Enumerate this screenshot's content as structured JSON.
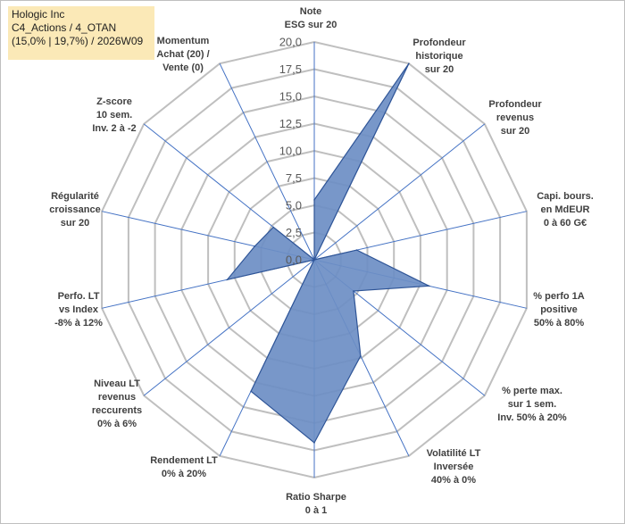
{
  "title_box": {
    "line1": "Hologic Inc",
    "line2": "C4_Actions / 4_OTAN",
    "line3": "(15,0% | 19,7%) / 2026W09"
  },
  "colors": {
    "fill": "#6d8ec4",
    "stroke": "#2f5597",
    "grid": "#bfbfbf",
    "spoke": "#4472c4",
    "title_bg": "#fbe9b7"
  },
  "chart_data": {
    "type": "radar",
    "rmax": 20,
    "ticks": [
      "0,0",
      "2,5",
      "5,0",
      "7,5",
      "10,0",
      "12,5",
      "15,0",
      "17,5",
      "20,0"
    ],
    "categories": [
      [
        "Note",
        "ESG sur 20"
      ],
      [
        "Profondeur",
        "historique",
        "sur 20"
      ],
      [
        "Profondeur",
        "revenus",
        "sur 20"
      ],
      [
        "Capi. bours.",
        "en MdEUR",
        "0 à 60 G€"
      ],
      [
        "% perfo 1A",
        "positive",
        "50% à 80%"
      ],
      [
        "% perte max.",
        "sur 1 sem.",
        "Inv. 50% à 20%"
      ],
      [
        "Volatilité LT",
        "Inversée",
        "40% à 0%"
      ],
      [
        "Ratio Sharpe",
        "0 à 1"
      ],
      [
        "Rendement LT",
        "0% à 20%"
      ],
      [
        "Niveau LT",
        "revenus",
        "reccurents",
        "0% à 6%"
      ],
      [
        "Perfo. LT",
        "vs Index",
        "-8% à 12%"
      ],
      [
        "Régularité",
        "croissance",
        "sur 20"
      ],
      [
        "Z-score",
        "10 sem.",
        "Inv. 2 à -2"
      ],
      [
        "Momentum",
        "Achat (20) /",
        "Vente (0)"
      ]
    ],
    "series": [
      {
        "name": "Hologic Inc",
        "values": [
          5.5,
          20.0,
          0.0,
          4.0,
          10.8,
          4.6,
          9.8,
          16.8,
          13.4,
          0.0,
          8.2,
          5.6,
          4.8,
          0.0
        ]
      }
    ]
  }
}
